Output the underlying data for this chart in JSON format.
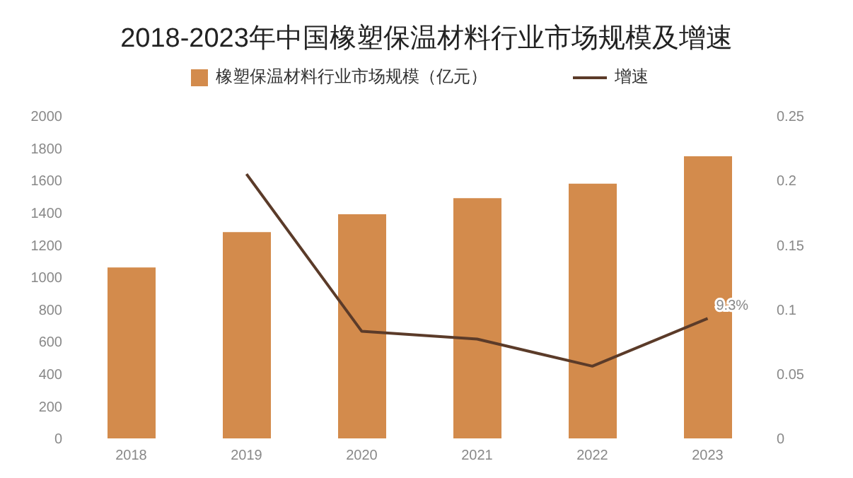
{
  "chart_data": {
    "type": "bar",
    "title": "2018-2023年中国橡塑保温材料行业市场规模及增速",
    "categories": [
      "2018",
      "2019",
      "2020",
      "2021",
      "2022",
      "2023"
    ],
    "series": [
      {
        "name": "橡塑保温材料行业市场规模（亿元）",
        "color": "#d38b4c",
        "values": [
          1060,
          1280,
          1390,
          1490,
          1580,
          1750
        ]
      },
      {
        "name": "增速",
        "type": "line",
        "axis": "y2",
        "color": "#5b3b29",
        "values": [
          null,
          0.205,
          0.083,
          0.077,
          0.056,
          0.093
        ],
        "value_labels": [
          null,
          null,
          null,
          null,
          null,
          "9.3%"
        ]
      }
    ],
    "ylim": [
      0,
      2000
    ],
    "yticks": [
      0,
      200,
      400,
      600,
      800,
      1000,
      1200,
      1400,
      1600,
      1800,
      2000
    ],
    "y2lim": [
      0,
      0.25
    ],
    "y2ticks": [
      0,
      0.05,
      0.1,
      0.15,
      0.2,
      0.25
    ],
    "legend": "top",
    "grid": false,
    "marker": "none"
  }
}
